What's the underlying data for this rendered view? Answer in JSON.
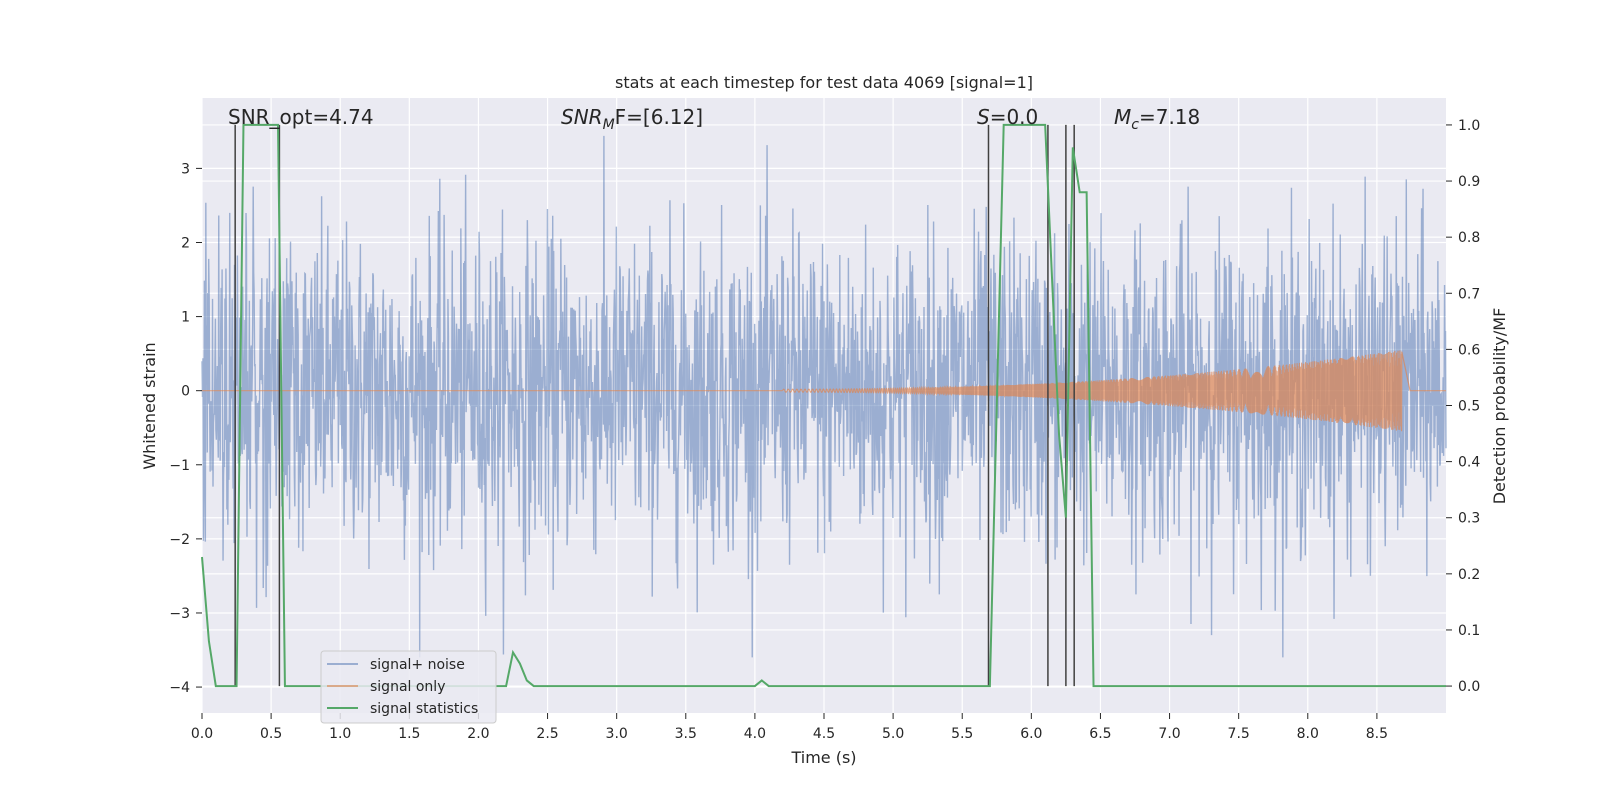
{
  "chart_data": {
    "type": "line",
    "title": "stats at each timestep for test data 4069 [signal=1]",
    "xlabel": "Time (s)",
    "ylabel": "Whitened strain",
    "y2label": "Detection probability/MF",
    "xlim": [
      0.0,
      9.0
    ],
    "ylim": [
      -4.35,
      3.95
    ],
    "y2lim": [
      -0.048,
      1.048
    ],
    "xticks": [
      "0.0",
      "0.5",
      "1.0",
      "1.5",
      "2.0",
      "2.5",
      "3.0",
      "3.5",
      "4.0",
      "4.5",
      "5.0",
      "5.5",
      "6.0",
      "6.5",
      "7.0",
      "7.5",
      "8.0",
      "8.5"
    ],
    "yticks": [
      "−4",
      "−3",
      "−2",
      "−1",
      "0",
      "1",
      "2",
      "3"
    ],
    "y2ticks": [
      "0.0",
      "0.1",
      "0.2",
      "0.3",
      "0.4",
      "0.5",
      "0.6",
      "0.7",
      "0.8",
      "0.9",
      "1.0"
    ],
    "grid": true,
    "legend_position": "lower-left",
    "annotations": {
      "snr_opt": "SNR_opt=4.74",
      "snr_mf_sym": "SNR",
      "snr_mf_sub": "M",
      "snr_mf_tail": "F=[6.12]",
      "s_sym": "S",
      "s_tail": "=0.0",
      "mc_sym": "M",
      "mc_sub": "c",
      "mc_tail": "=7.18"
    },
    "colors": {
      "noise": "#4c72b0",
      "signal": "#dd8452",
      "stats": "#55a868",
      "vlines": "#404040",
      "background": "#eaeaf2",
      "grid": "#ffffff"
    },
    "series": [
      {
        "name": "signal+ noise",
        "description_values": "Gaussian-like whitened strain noise, amplitude ~±2 typical, peaks to ~±3.6",
        "std": 1.05
      },
      {
        "name": "signal only",
        "chirp": {
          "start": 4.2,
          "end": 8.68,
          "amp_start": 0.02,
          "amp_end": 0.55
        }
      },
      {
        "name": "signal statistics",
        "x": [
          0.0,
          0.05,
          0.1,
          0.2,
          0.25,
          0.3,
          0.35,
          0.55,
          0.6,
          0.7,
          0.8,
          0.9,
          1.0,
          2.2,
          2.25,
          2.3,
          2.35,
          2.4,
          2.5,
          3.5,
          4.0,
          4.05,
          4.1,
          4.2,
          4.5,
          5.0,
          5.5,
          5.6,
          5.7,
          5.8,
          6.1,
          6.2,
          6.25,
          6.3,
          6.35,
          6.4,
          6.45,
          6.5,
          7.0,
          9.0
        ],
        "y": [
          0.23,
          0.08,
          0.0,
          0.0,
          0.0,
          1.0,
          1.0,
          1.0,
          0.0,
          0.0,
          0.0,
          0.0,
          0.0,
          0.0,
          0.06,
          0.04,
          0.01,
          0.0,
          0.0,
          0.0,
          0.0,
          0.01,
          0.0,
          0.0,
          0.0,
          0.0,
          0.0,
          0.0,
          0.0,
          1.0,
          1.0,
          0.45,
          0.3,
          0.96,
          0.88,
          0.88,
          0.0,
          0.0,
          0.0,
          0.0
        ]
      }
    ],
    "vlines": [
      0.24,
      0.56,
      5.69,
      6.12,
      6.25,
      6.31
    ]
  }
}
